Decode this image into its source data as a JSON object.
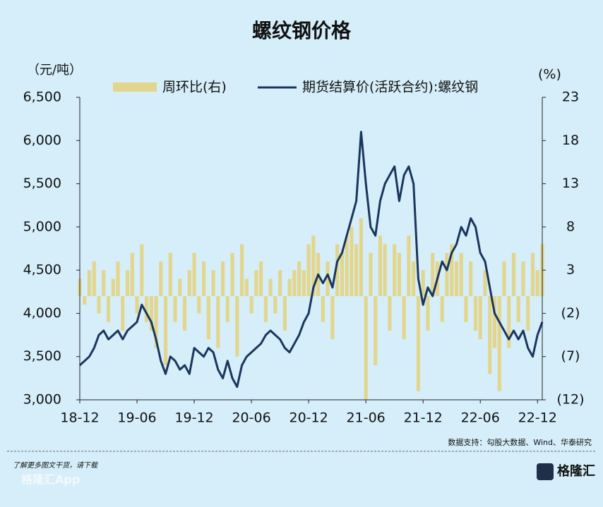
{
  "chart_data": {
    "type": "bar-line",
    "title": "螺纹钢价格",
    "y_unit": "（元/吨）",
    "y2_unit": "(%)",
    "categories": [
      "18-12",
      null,
      null,
      null,
      null,
      null,
      null,
      null,
      null,
      null,
      null,
      null,
      "19-06",
      null,
      null,
      null,
      null,
      null,
      null,
      null,
      null,
      null,
      null,
      null,
      "19-12",
      null,
      null,
      null,
      null,
      null,
      null,
      null,
      null,
      null,
      null,
      null,
      "20-06",
      null,
      null,
      null,
      null,
      null,
      null,
      null,
      null,
      null,
      null,
      null,
      "20-12",
      null,
      null,
      null,
      null,
      null,
      null,
      null,
      null,
      null,
      null,
      null,
      "21-06",
      null,
      null,
      null,
      null,
      null,
      null,
      null,
      null,
      null,
      null,
      null,
      "21-12",
      null,
      null,
      null,
      null,
      null,
      null,
      null,
      null,
      null,
      null,
      null,
      "22-06",
      null,
      null,
      null,
      null,
      null,
      null,
      null,
      null,
      null,
      null,
      null,
      "22-12",
      null
    ],
    "series": [
      {
        "name": "周环比(右)",
        "color": "#e2d68e",
        "kind": "bar",
        "axis": "y2",
        "values": [
          2,
          -1,
          3,
          4,
          -2,
          3,
          -3,
          2,
          4,
          -4,
          3,
          5,
          -2,
          6,
          -3,
          -4,
          -6,
          4,
          -8,
          5,
          -3,
          2,
          -4,
          3,
          5,
          -2,
          4,
          -5,
          3,
          -6,
          4,
          -3,
          5,
          -7,
          6,
          2,
          -2,
          3,
          4,
          -3,
          2,
          -2,
          3,
          -4,
          2,
          3,
          4,
          3,
          6,
          7,
          5,
          -3,
          4,
          -5,
          6,
          5,
          7,
          8,
          6,
          9,
          -12,
          5,
          -8,
          7,
          6,
          -4,
          6,
          5,
          -5,
          7,
          4,
          -11,
          3,
          -4,
          5,
          4,
          -3,
          5,
          6,
          4,
          5,
          -3,
          4,
          -4,
          -5,
          3,
          -9,
          -6,
          -11,
          4,
          -6,
          5,
          -3,
          4,
          -4,
          5,
          3,
          6
        ]
      },
      {
        "name": "期货结算价(活跃合约):螺纹钢",
        "color": "#1b365d",
        "kind": "line",
        "values": [
          3400,
          3450,
          3500,
          3600,
          3750,
          3800,
          3700,
          3750,
          3800,
          3700,
          3800,
          3850,
          3900,
          4100,
          4000,
          3900,
          3700,
          3450,
          3300,
          3500,
          3450,
          3350,
          3400,
          3300,
          3600,
          3550,
          3500,
          3600,
          3550,
          3350,
          3250,
          3450,
          3250,
          3150,
          3400,
          3500,
          3550,
          3600,
          3650,
          3750,
          3800,
          3750,
          3700,
          3600,
          3550,
          3650,
          3750,
          3900,
          4000,
          4300,
          4450,
          4350,
          4450,
          4300,
          4600,
          4700,
          4900,
          5100,
          5300,
          6100,
          5500,
          5000,
          4900,
          5300,
          5500,
          5600,
          5700,
          5300,
          5600,
          5700,
          5500,
          4400,
          4100,
          4300,
          4200,
          4400,
          4600,
          4500,
          4700,
          4800,
          5000,
          4900,
          5100,
          5000,
          4700,
          4600,
          4300,
          4000,
          3900,
          3800,
          3700,
          3800,
          3700,
          3800,
          3600,
          3500,
          3750,
          3900
        ]
      }
    ],
    "ylim": [
      3000,
      6500
    ],
    "yticks": [
      {
        "value": 3000,
        "label": "3,000"
      },
      {
        "value": 3500,
        "label": "3,500"
      },
      {
        "value": 4000,
        "label": "4,000"
      },
      {
        "value": 4500,
        "label": "4,500"
      },
      {
        "value": 5000,
        "label": "5,000"
      },
      {
        "value": 5500,
        "label": "5,500"
      },
      {
        "value": 6000,
        "label": "6,000"
      },
      {
        "value": 6500,
        "label": "6,500"
      }
    ],
    "y2lim": [
      -12,
      23
    ],
    "y2ticks": [
      {
        "value": -12,
        "label": "(12)"
      },
      {
        "value": -7,
        "label": "(7)"
      },
      {
        "value": -2,
        "label": "(2)"
      },
      3,
      8,
      13,
      18,
      23
    ],
    "source": "数据支持：勾股大数据、Wind、华泰研究",
    "footer_note": "了解更多图文干货，请下载",
    "footer_app": "格隆汇App",
    "logo": "格隆汇"
  }
}
